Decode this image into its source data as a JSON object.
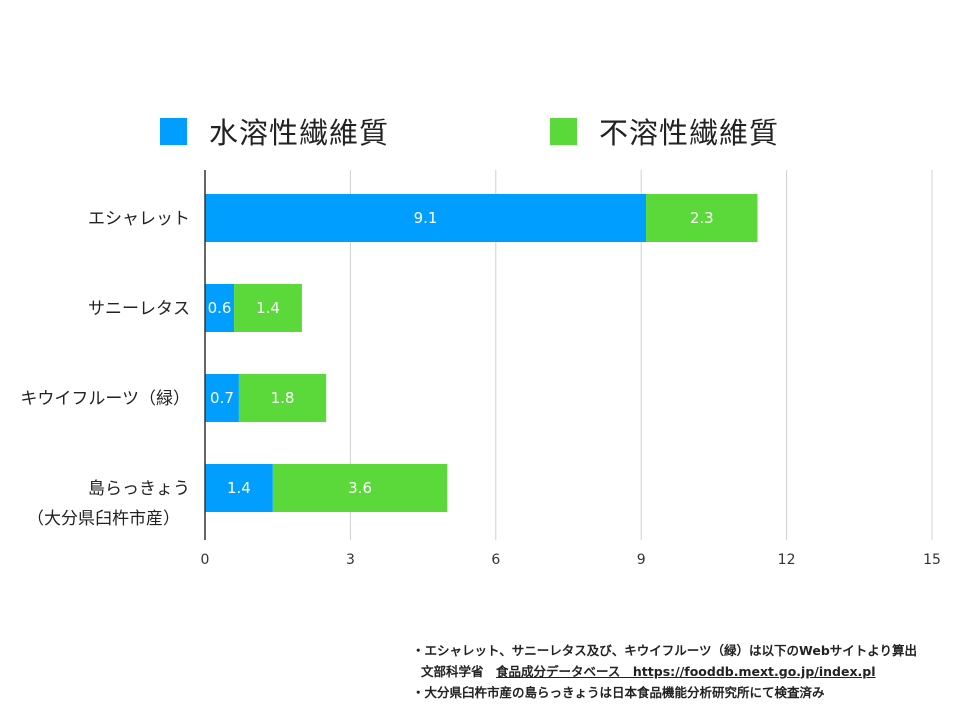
{
  "chart_data": {
    "type": "bar",
    "orientation": "horizontal",
    "stacked": true,
    "categories": [
      {
        "name": "エシャレット",
        "sub": ""
      },
      {
        "name": "サニーレタス",
        "sub": ""
      },
      {
        "name": "キウイフルーツ（緑）",
        "sub": ""
      },
      {
        "name": "島らっきょう",
        "sub": "（大分県臼杵市産）"
      }
    ],
    "series": [
      {
        "name": "水溶性繊維質",
        "color": "#009FFF",
        "values": [
          9.1,
          0.6,
          0.7,
          1.4
        ]
      },
      {
        "name": "不溶性繊維質",
        "color": "#5BD93A",
        "values": [
          2.3,
          1.4,
          1.8,
          3.6
        ]
      }
    ],
    "xlim": [
      0,
      15
    ],
    "xticks": [
      0,
      3,
      6,
      9,
      12,
      15
    ],
    "grid": true,
    "legend": "top",
    "title": "",
    "xlabel": "",
    "ylabel": ""
  },
  "notes": [
    {
      "text": "・エシャレット、サニーレタス及び、キウイフルーツ（緑）は以下のWebサイトより算出"
    },
    {
      "prefix": "文部科学省　",
      "link": "食品成分データベース　https://fooddb.mext.go.jp/index.pl"
    },
    {
      "text": "・大分県臼杵市産の島らっきょうは日本食品機能分析研究所にて検査済み"
    }
  ]
}
